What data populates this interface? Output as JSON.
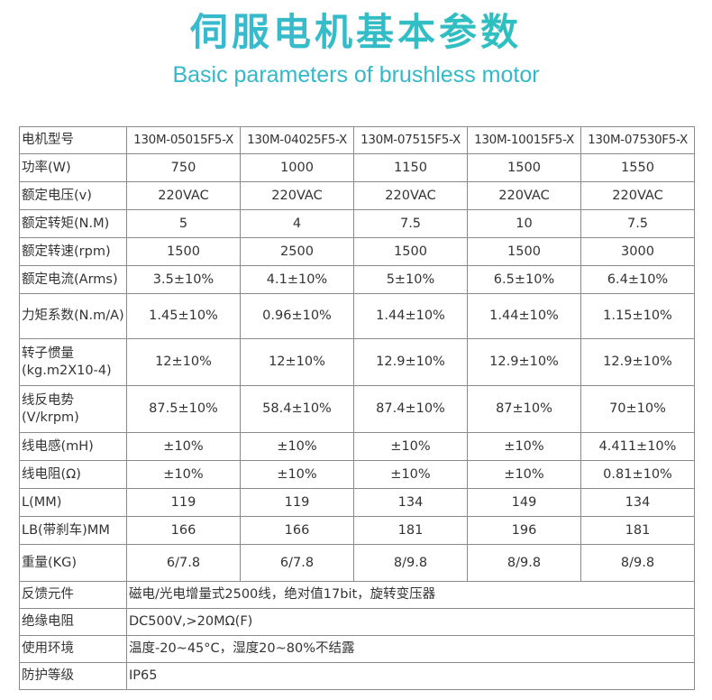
{
  "title": "伺服电机基本参数",
  "subtitle": "Basic parameters of brushless motor",
  "table": {
    "header": {
      "label": "电机型号",
      "models": [
        "130M-05015F5-X",
        "130M-04025F5-X",
        "130M-07515F5-X",
        "130M-10015F5-X",
        "130M-07530F5-X"
      ]
    },
    "rows": [
      {
        "label": "功率(W)",
        "values": [
          "750",
          "1000",
          "1150",
          "1500",
          "1550"
        ]
      },
      {
        "label": "额定电压(v)",
        "values": [
          "220VAC",
          "220VAC",
          "220VAC",
          "220VAC",
          "220VAC"
        ]
      },
      {
        "label": "额定转矩(N.M)",
        "values": [
          "5",
          "4",
          "7.5",
          "10",
          "7.5"
        ]
      },
      {
        "label": "额定转速(rpm)",
        "values": [
          "1500",
          "2500",
          "1500",
          "1500",
          "3000"
        ]
      },
      {
        "label": "额定电流(Arms)",
        "values": [
          "3.5±10%",
          "4.1±10%",
          "5±10%",
          "6.5±10%",
          "6.4±10%"
        ]
      },
      {
        "label": "力矩系数(N.m/A)",
        "values": [
          "1.45±10%",
          "0.96±10%",
          "1.44±10%",
          "1.44±10%",
          "1.15±10%"
        ]
      },
      {
        "label": "转子惯量(kg.m2X10-4)",
        "values": [
          "12±10%",
          "12±10%",
          "12.9±10%",
          "12.9±10%",
          "12.9±10%"
        ]
      },
      {
        "label": "线反电势(V/krpm)",
        "values": [
          "87.5±10%",
          "58.4±10%",
          "87.4±10%",
          "87±10%",
          "70±10%"
        ]
      },
      {
        "label": "线电感(mH)",
        "values": [
          "±10%",
          "±10%",
          "±10%",
          "±10%",
          "4.411±10%"
        ]
      },
      {
        "label": "线电阻(Ω)",
        "values": [
          "±10%",
          "±10%",
          "±10%",
          "±10%",
          "0.81±10%"
        ]
      },
      {
        "label": "L(MM)",
        "values": [
          "119",
          "119",
          "134",
          "149",
          "134"
        ]
      },
      {
        "label": "LB(带刹车)MM",
        "values": [
          "166",
          "166",
          "181",
          "196",
          "181"
        ]
      },
      {
        "label": "重量(KG)",
        "values": [
          "6/7.8",
          "6/7.8",
          "8/9.8",
          "8/9.8",
          "8/9.8"
        ]
      }
    ],
    "span_rows": [
      {
        "label": "反馈元件",
        "value": "磁电/光电增量式2500线，绝对值17bit，旋转变压器"
      },
      {
        "label": "绝缘电阻",
        "value": "DC500V,>20MΩ(F)"
      },
      {
        "label": "使用环境",
        "value": "温度-20~45°C，湿度20~80%不结露"
      },
      {
        "label": "防护等级",
        "value": "IP65"
      }
    ]
  }
}
